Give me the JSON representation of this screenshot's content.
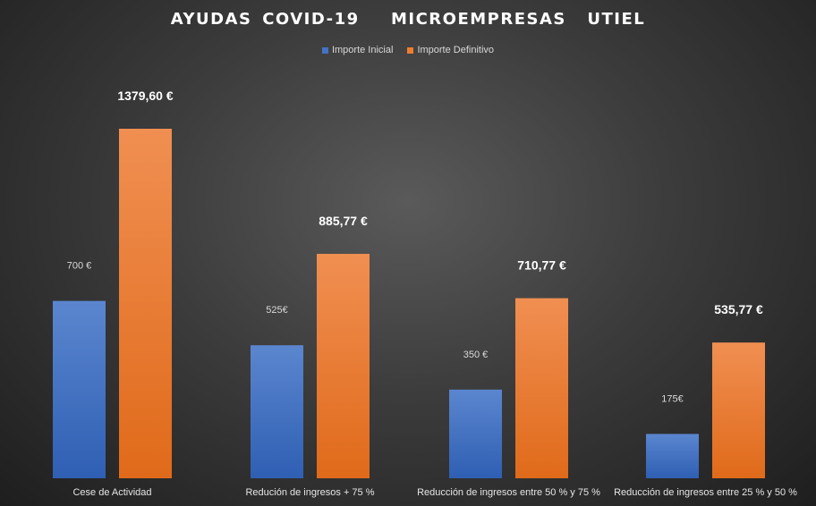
{
  "chart_data": {
    "type": "bar",
    "title": "AYUDAS COVID-19   MICROEMPRESAS  UTIEL",
    "categories": [
      "Cese de Actividad",
      "Redución de ingresos + 75 %",
      "Reducción de ingresos entre  50 % y 75 %",
      "Reducción de ingresos entre  25 % y 50 %"
    ],
    "series": [
      {
        "name": "Importe Inicial",
        "color": "#4472C4",
        "values": [
          700,
          525,
          350,
          175
        ],
        "labels": [
          "700 €",
          "525€",
          "350 €",
          "175€"
        ]
      },
      {
        "name": "Importe Definitivo",
        "color": "#ED7D31",
        "values": [
          1379.6,
          885.77,
          710.77,
          535.77
        ],
        "labels": [
          "1379,60 €",
          "885,77 €",
          "710,77 €",
          "535,77 €"
        ]
      }
    ],
    "ylim": [
      0,
      1400
    ],
    "grid": false,
    "legend_position": "top"
  }
}
